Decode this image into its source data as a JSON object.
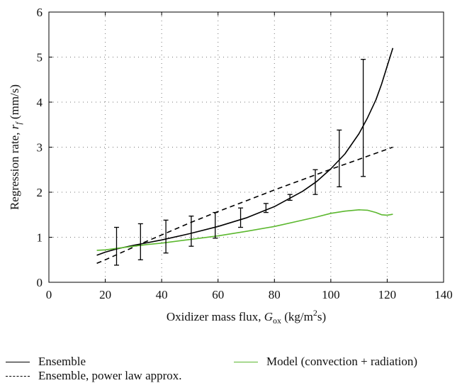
{
  "chart_data": {
    "type": "line",
    "xlabel": "Oxidizer mass flux, G_ox (kg/m²s)",
    "xlabel_parts": {
      "prefix": "Oxidizer mass flux, ",
      "var": "G",
      "sub": "ox",
      "unit_pre": " (kg/m",
      "sup": "2",
      "unit_post": "s)"
    },
    "ylabel": "Regression rate, r_f (mm/s)",
    "ylabel_parts": {
      "prefix": "Regression rate, ",
      "var": "r",
      "sub": "f",
      "unit": " (mm/s)"
    },
    "xlim": [
      0,
      140
    ],
    "ylim": [
      0,
      6
    ],
    "xticks": [
      0,
      20,
      40,
      60,
      80,
      100,
      120,
      140
    ],
    "yticks": [
      0,
      1,
      2,
      3,
      4,
      5,
      6
    ],
    "grid": true,
    "legend_position": "bottom",
    "series": [
      {
        "name": "Ensemble",
        "color": "#000000",
        "style": "solid",
        "x": [
          17,
          20,
          24,
          30,
          35,
          40,
          50,
          60,
          70,
          80,
          90,
          95,
          100,
          105,
          110,
          113,
          116,
          118,
          120,
          121,
          122
        ],
        "y": [
          0.6,
          0.67,
          0.74,
          0.82,
          0.88,
          0.94,
          1.08,
          1.24,
          1.43,
          1.68,
          2.02,
          2.24,
          2.52,
          2.85,
          3.3,
          3.65,
          4.05,
          4.4,
          4.8,
          5.0,
          5.2
        ]
      },
      {
        "name": "Ensemble, power law approx.",
        "color": "#000000",
        "style": "dashed",
        "x": [
          17,
          20,
          25,
          30,
          35,
          40,
          50,
          60,
          70,
          80,
          90,
          100,
          110,
          122
        ],
        "y": [
          0.42,
          0.5,
          0.64,
          0.78,
          0.92,
          1.05,
          1.32,
          1.57,
          1.81,
          2.05,
          2.28,
          2.51,
          2.73,
          3.0
        ]
      },
      {
        "name": "Model (convection + radiation)",
        "color": "#5cb82f",
        "style": "solid",
        "x": [
          17,
          20,
          25,
          30,
          35,
          40,
          50,
          60,
          70,
          80,
          90,
          95,
          100,
          105,
          110,
          113,
          116,
          118,
          120,
          122
        ],
        "y": [
          0.71,
          0.72,
          0.76,
          0.8,
          0.84,
          0.87,
          0.95,
          1.03,
          1.13,
          1.24,
          1.38,
          1.45,
          1.53,
          1.58,
          1.61,
          1.6,
          1.55,
          1.5,
          1.49,
          1.51
        ]
      }
    ],
    "error_bars": {
      "color": "#000000",
      "points": [
        {
          "x": 24,
          "low": 0.38,
          "high": 1.22
        },
        {
          "x": 32.5,
          "low": 0.5,
          "high": 1.3
        },
        {
          "x": 41.5,
          "low": 0.65,
          "high": 1.38
        },
        {
          "x": 50.5,
          "low": 0.8,
          "high": 1.47
        },
        {
          "x": 59,
          "low": 0.98,
          "high": 1.55
        },
        {
          "x": 68,
          "low": 1.22,
          "high": 1.65
        },
        {
          "x": 77,
          "low": 1.55,
          "high": 1.75
        },
        {
          "x": 85.5,
          "low": 1.82,
          "high": 1.95
        },
        {
          "x": 94.5,
          "low": 1.95,
          "high": 2.5
        },
        {
          "x": 103,
          "low": 2.12,
          "high": 3.38
        },
        {
          "x": 111.5,
          "low": 2.35,
          "high": 4.95
        }
      ]
    }
  },
  "legend": {
    "items": [
      {
        "label": "Ensemble",
        "color": "#000000",
        "style": "solid"
      },
      {
        "label": "Model (convection + radiation)",
        "color": "#5cb82f",
        "style": "solid"
      },
      {
        "label": "Ensemble, power law approx.",
        "color": "#000000",
        "style": "dashed"
      }
    ]
  }
}
